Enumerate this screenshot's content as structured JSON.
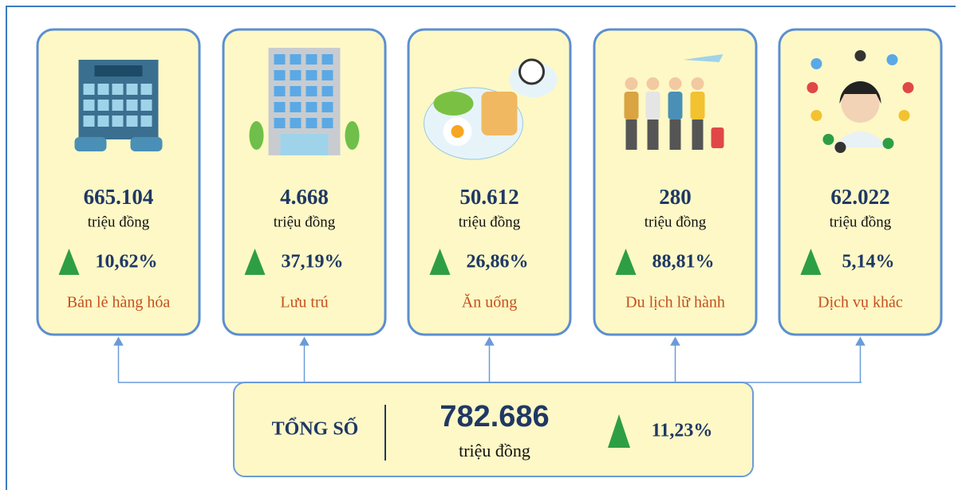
{
  "cards": [
    {
      "value": "665.104",
      "unit": "triệu đồng",
      "change": "10,62%",
      "label": "Bán lẻ hàng hóa"
    },
    {
      "value": "4.668",
      "unit": "triệu đồng",
      "change": "37,19%",
      "label": "Lưu trú"
    },
    {
      "value": "50.612",
      "unit": "triệu đồng",
      "change": "26,86%",
      "label": "Ăn uống"
    },
    {
      "value": "280",
      "unit": "triệu đồng",
      "change": "88,81%",
      "label": "Du lịch lữ hành"
    },
    {
      "value": "62.022",
      "unit": "triệu đồng",
      "change": "5,14%",
      "label": "Dịch vụ khác"
    }
  ],
  "total": {
    "label": "TỔNG SỐ",
    "value": "782.686",
    "unit": "triệu đồng",
    "change": "11,23%"
  }
}
